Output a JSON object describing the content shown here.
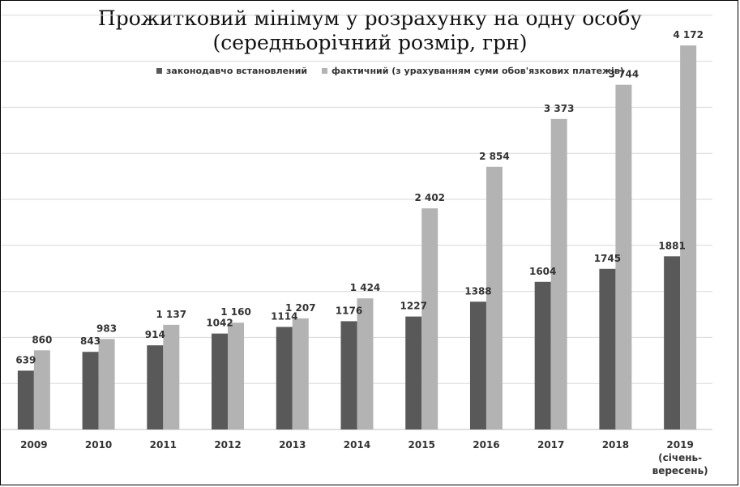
{
  "chart_data": {
    "type": "bar",
    "title": "Прожитковий мінімум у розрахунку на одну особу",
    "subtitle": "(середньорічний розмір, грн)",
    "categories": [
      "2009",
      "2010",
      "2011",
      "2012",
      "2013",
      "2014",
      "2015",
      "2016",
      "2017",
      "2018",
      "2019"
    ],
    "category_sublabels": {
      "2019": [
        "(січень-",
        "вересень)"
      ]
    },
    "series": [
      {
        "name": "законодавчо встановлений",
        "color": "#595959",
        "values": [
          639,
          843,
          914,
          1042,
          1114,
          1176,
          1227,
          1388,
          1604,
          1745,
          1881
        ],
        "value_labels": [
          "639",
          "843",
          "914",
          "1042",
          "1114",
          "1176",
          "1227",
          "1388",
          "1604",
          "1745",
          "1881"
        ]
      },
      {
        "name": "фактичний (з урахуванням суми обов'язкових платежів)",
        "color": "#b3b3b3",
        "values": [
          860,
          983,
          1137,
          1160,
          1207,
          1424,
          2402,
          2854,
          3373,
          3744,
          4172
        ],
        "value_labels": [
          "860",
          "983",
          "1 137",
          "1 160",
          "1 207",
          "1 424",
          "2 402",
          "2 854",
          "3 373",
          "3 744",
          "4 172"
        ]
      }
    ],
    "ylim": [
      0,
      4700
    ],
    "grid": true,
    "legend": "top"
  }
}
